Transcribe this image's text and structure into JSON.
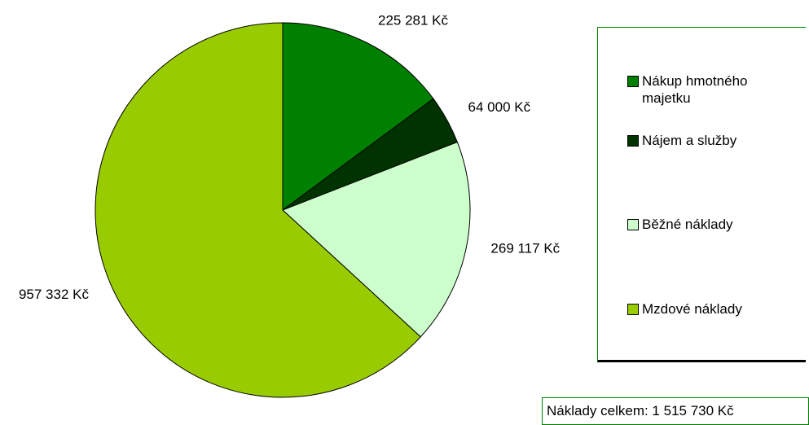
{
  "chart_data": {
    "type": "pie",
    "categories": [
      "Nákup hmotného majetku",
      "Nájem a služby",
      "Běžné náklady",
      "Mzdové náklady"
    ],
    "values": [
      225281,
      64000,
      269117,
      957332
    ],
    "value_labels": [
      "225 281 Kč",
      "64 000 Kč",
      "269 117 Kč",
      "957 332 Kč"
    ],
    "colors": [
      "#008000",
      "#003300",
      "#ccffcc",
      "#99cc00"
    ],
    "annotation": "Náklady celkem: 1 515 730 Kč"
  }
}
